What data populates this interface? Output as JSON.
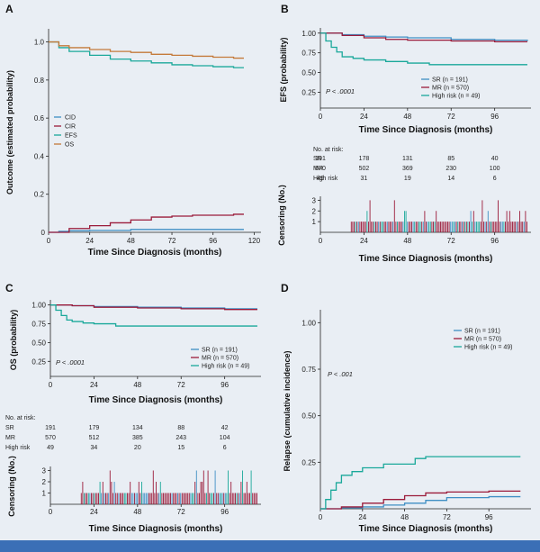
{
  "colors": {
    "SR": "#3f8fc4",
    "MR": "#9b1b3a",
    "HR": "#1aa89a",
    "CID": "#3f8fc4",
    "CIR": "#9b1b3a",
    "EFS": "#1aa89a",
    "OS": "#c47a3a"
  },
  "chart_data": [
    {
      "panel": "A",
      "type": "line",
      "xlabel": "Time Since Diagnosis (months)",
      "ylabel": "Outcome (estimated probability)",
      "xlim": [
        0,
        124
      ],
      "ylim": [
        0,
        1.05
      ],
      "xticks": [
        "0",
        "24",
        "48",
        "72",
        "96",
        "120"
      ],
      "xtick_values": [
        0,
        24,
        48,
        72,
        96,
        120
      ],
      "yticks": [
        "0.2",
        "0.4",
        "0.6",
        "0.8",
        "1.0"
      ],
      "ytick_values": [
        0.2,
        0.4,
        0.6,
        0.8,
        1.0
      ],
      "series": [
        {
          "name": "CID",
          "color_key": "CID",
          "x": [
            0,
            6,
            12,
            24,
            48,
            72,
            96,
            114
          ],
          "y": [
            0,
            0.005,
            0.008,
            0.01,
            0.015,
            0.015,
            0.015,
            0.015
          ]
        },
        {
          "name": "CIR",
          "color_key": "CIR",
          "x": [
            0,
            12,
            24,
            36,
            48,
            60,
            72,
            84,
            96,
            108,
            114
          ],
          "y": [
            0,
            0.02,
            0.035,
            0.05,
            0.065,
            0.08,
            0.085,
            0.09,
            0.09,
            0.095,
            0.095
          ]
        },
        {
          "name": "EFS",
          "color_key": "EFS",
          "x": [
            0,
            6,
            12,
            24,
            36,
            48,
            60,
            72,
            84,
            96,
            108,
            114
          ],
          "y": [
            1.0,
            0.97,
            0.95,
            0.93,
            0.91,
            0.9,
            0.89,
            0.88,
            0.875,
            0.87,
            0.865,
            0.865
          ]
        },
        {
          "name": "OS",
          "color_key": "OS",
          "x": [
            0,
            6,
            12,
            24,
            36,
            48,
            60,
            72,
            84,
            96,
            108,
            114
          ],
          "y": [
            1.0,
            0.98,
            0.97,
            0.96,
            0.95,
            0.945,
            0.935,
            0.93,
            0.925,
            0.92,
            0.915,
            0.915
          ]
        }
      ]
    },
    {
      "panel": "B",
      "type": "line",
      "xlabel": "Time Since Diagnosis (months)",
      "ylabel": "EFS (probability)",
      "xlim": [
        0,
        116
      ],
      "ylim": [
        0.05,
        1.02
      ],
      "xticks": [
        "0",
        "24",
        "48",
        "72",
        "96"
      ],
      "xtick_values": [
        0,
        24,
        48,
        72,
        96
      ],
      "yticks": [
        "0.25",
        "0.50",
        "0.75",
        "1.00"
      ],
      "ytick_values": [
        0.25,
        0.5,
        0.75,
        1.0
      ],
      "pvalue": "P < .0001",
      "legend": [
        "SR (n = 191)",
        "MR (n = 570)",
        "High risk (n = 49)"
      ],
      "series": [
        {
          "name": "SR",
          "color_key": "SR",
          "x": [
            0,
            12,
            24,
            36,
            48,
            72,
            96,
            114
          ],
          "y": [
            1.0,
            0.98,
            0.96,
            0.95,
            0.94,
            0.92,
            0.91,
            0.9
          ]
        },
        {
          "name": "MR",
          "color_key": "MR",
          "x": [
            0,
            12,
            24,
            36,
            48,
            72,
            96,
            114
          ],
          "y": [
            1.0,
            0.97,
            0.94,
            0.92,
            0.91,
            0.9,
            0.89,
            0.89
          ]
        },
        {
          "name": "High risk",
          "color_key": "HR",
          "x": [
            0,
            3,
            6,
            9,
            12,
            18,
            24,
            36,
            48,
            60,
            96,
            114
          ],
          "y": [
            1.0,
            0.9,
            0.82,
            0.76,
            0.7,
            0.68,
            0.66,
            0.64,
            0.62,
            0.6,
            0.6,
            0.6
          ]
        }
      ],
      "risk_table": {
        "title": "No. at risk:",
        "rows": [
          {
            "label": "SR",
            "values": [
              "191",
              "178",
              "131",
              "85",
              "40"
            ]
          },
          {
            "label": "MR",
            "values": [
              "570",
              "502",
              "369",
              "230",
              "100"
            ]
          },
          {
            "label": "High risk",
            "values": [
              "49",
              "31",
              "19",
              "14",
              "6"
            ]
          }
        ]
      },
      "censoring": {
        "ylabel": "Censoring (No.)",
        "yticks": [
          "1",
          "2",
          "3"
        ],
        "xticks": [
          "0",
          "24",
          "48",
          "72",
          "96"
        ],
        "start": 17,
        "end": 114
      }
    },
    {
      "panel": "C",
      "type": "line",
      "xlabel": "Time Since Diagnosis (months)",
      "ylabel": "OS (probability)",
      "xlim": [
        0,
        116
      ],
      "ylim": [
        0.05,
        1.02
      ],
      "xticks": [
        "0",
        "24",
        "48",
        "72",
        "96"
      ],
      "xtick_values": [
        0,
        24,
        48,
        72,
        96
      ],
      "yticks": [
        "0.25",
        "0.50",
        "0.75",
        "1.00"
      ],
      "ytick_values": [
        0.25,
        0.5,
        0.75,
        1.0
      ],
      "pvalue": "P < .0001",
      "legend": [
        "SR (n = 191)",
        "MR (n = 570)",
        "High risk (n = 49)"
      ],
      "series": [
        {
          "name": "SR",
          "color_key": "SR",
          "x": [
            0,
            12,
            24,
            48,
            72,
            96,
            114
          ],
          "y": [
            1.0,
            0.99,
            0.98,
            0.97,
            0.96,
            0.95,
            0.95
          ]
        },
        {
          "name": "MR",
          "color_key": "MR",
          "x": [
            0,
            12,
            24,
            48,
            72,
            96,
            114
          ],
          "y": [
            1.0,
            0.99,
            0.97,
            0.96,
            0.95,
            0.94,
            0.94
          ]
        },
        {
          "name": "High risk",
          "color_key": "HR",
          "x": [
            0,
            3,
            6,
            9,
            12,
            18,
            24,
            36,
            60,
            114
          ],
          "y": [
            1.0,
            0.93,
            0.86,
            0.8,
            0.78,
            0.76,
            0.75,
            0.72,
            0.72,
            0.72
          ]
        }
      ],
      "risk_table": {
        "title": "No. at risk:",
        "rows": [
          {
            "label": "SR",
            "values": [
              "191",
              "179",
              "134",
              "88",
              "42"
            ]
          },
          {
            "label": "MR",
            "values": [
              "570",
              "512",
              "385",
              "243",
              "104"
            ]
          },
          {
            "label": "High risk",
            "values": [
              "49",
              "34",
              "20",
              "15",
              "6"
            ]
          }
        ]
      },
      "censoring": {
        "ylabel": "Censoring (No.)",
        "yticks": [
          "1",
          "2",
          "3"
        ],
        "xticks": [
          "0",
          "24",
          "48",
          "72",
          "96"
        ],
        "start": 17,
        "end": 114
      }
    },
    {
      "panel": "D",
      "type": "line",
      "xlabel": "Time Since Diagnosis (months)",
      "ylabel": "Relapse (cumulative incidence)",
      "xlim": [
        0,
        120
      ],
      "ylim": [
        0,
        1.05
      ],
      "xticks": [
        "0",
        "24",
        "48",
        "72",
        "96"
      ],
      "xtick_values": [
        0,
        24,
        48,
        72,
        96
      ],
      "yticks": [
        "0.25",
        "0.50",
        "0.75",
        "1.00"
      ],
      "ytick_values": [
        0.25,
        0.5,
        0.75,
        1.0
      ],
      "pvalue": "P < .001",
      "legend": [
        "SR (n = 191)",
        "MR (n = 570)",
        "High risk (n = 49)"
      ],
      "series": [
        {
          "name": "SR",
          "color_key": "SR",
          "x": [
            0,
            12,
            24,
            36,
            48,
            60,
            72,
            96,
            114
          ],
          "y": [
            0,
            0.005,
            0.01,
            0.02,
            0.03,
            0.045,
            0.06,
            0.065,
            0.065
          ]
        },
        {
          "name": "MR",
          "color_key": "MR",
          "x": [
            0,
            12,
            24,
            36,
            48,
            60,
            72,
            96,
            114
          ],
          "y": [
            0,
            0.01,
            0.03,
            0.05,
            0.07,
            0.085,
            0.09,
            0.095,
            0.095
          ]
        },
        {
          "name": "High risk",
          "color_key": "HR",
          "x": [
            0,
            3,
            6,
            9,
            12,
            18,
            24,
            36,
            54,
            60,
            114
          ],
          "y": [
            0,
            0.05,
            0.1,
            0.14,
            0.18,
            0.2,
            0.22,
            0.24,
            0.27,
            0.28,
            0.28
          ]
        }
      ]
    }
  ]
}
